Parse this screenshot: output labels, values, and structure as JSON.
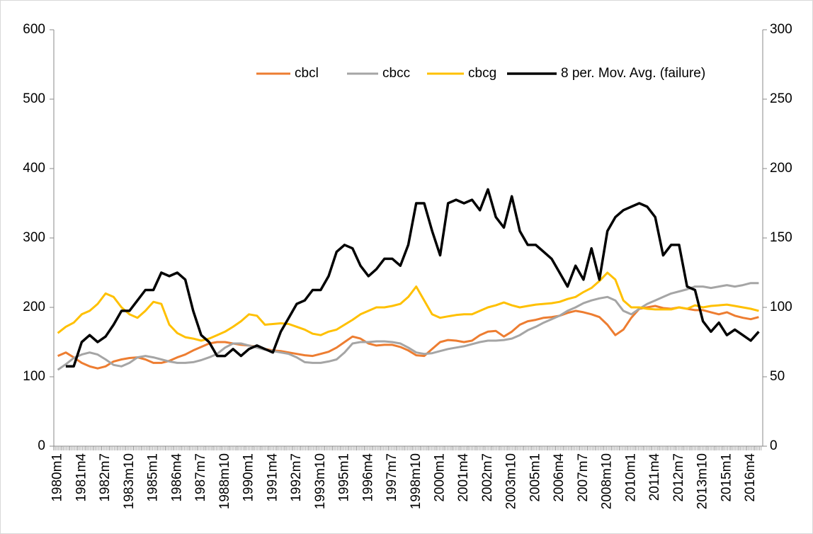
{
  "chart_data": {
    "type": "line",
    "categories": [
      "1980m1",
      null,
      null,
      "1981m4",
      null,
      null,
      "1982m7",
      null,
      null,
      "1983m10",
      null,
      null,
      "1985m1",
      null,
      null,
      "1986m4",
      null,
      null,
      "1987m7",
      null,
      null,
      "1988m10",
      null,
      null,
      "1990m1",
      null,
      null,
      "1991m4",
      null,
      null,
      "1992m7",
      null,
      null,
      "1993m10",
      null,
      null,
      "1995m1",
      null,
      null,
      "1996m4",
      null,
      null,
      "1997m7",
      null,
      null,
      "1998m10",
      null,
      null,
      "2000m1",
      null,
      null,
      "2001m4",
      null,
      null,
      "2002m7",
      null,
      null,
      "2003m10",
      null,
      null,
      "2005m1",
      null,
      null,
      "2006m4",
      null,
      null,
      "2007m7",
      null,
      null,
      "2008m10",
      null,
      null,
      "2010m1",
      null,
      null,
      "2011m4",
      null,
      null,
      "2012m7",
      null,
      null,
      "2013m10",
      null,
      null,
      "2015m1",
      null,
      null,
      "2016m4",
      null
    ],
    "series": [
      {
        "name": "cbcl",
        "color": "#ed7d31",
        "values": [
          130,
          135,
          128,
          120,
          115,
          112,
          115,
          122,
          125,
          127,
          128,
          125,
          120,
          120,
          123,
          128,
          132,
          138,
          143,
          148,
          150,
          150,
          148,
          146,
          145,
          143,
          140,
          138,
          137,
          135,
          133,
          131,
          130,
          133,
          136,
          142,
          150,
          158,
          155,
          148,
          145,
          146,
          146,
          143,
          138,
          131,
          130,
          140,
          150,
          153,
          152,
          150,
          152,
          160,
          165,
          166,
          158,
          165,
          175,
          180,
          182,
          185,
          186,
          188,
          192,
          195,
          193,
          190,
          186,
          175,
          160,
          168,
          185,
          198,
          200,
          202,
          199,
          198,
          200,
          198,
          196,
          196,
          193,
          190,
          193,
          188,
          185,
          183,
          186
        ]
      },
      {
        "name": "cbcc",
        "color": "#a5a5a5",
        "values": [
          110,
          118,
          127,
          132,
          135,
          132,
          125,
          117,
          115,
          120,
          128,
          130,
          128,
          125,
          122,
          120,
          120,
          121,
          124,
          128,
          133,
          142,
          148,
          148,
          145,
          142,
          139,
          137,
          135,
          133,
          128,
          121,
          120,
          120,
          122,
          125,
          135,
          148,
          150,
          150,
          151,
          151,
          150,
          148,
          142,
          135,
          133,
          134,
          137,
          140,
          142,
          144,
          147,
          150,
          152,
          152,
          153,
          155,
          160,
          167,
          172,
          178,
          183,
          188,
          195,
          200,
          206,
          210,
          213,
          215,
          210,
          195,
          190,
          198,
          205,
          210,
          215,
          220,
          223,
          226,
          230,
          230,
          228,
          230,
          232,
          230,
          232,
          235,
          235
        ]
      },
      {
        "name": "cbcg",
        "color": "#ffc000",
        "values": [
          163,
          172,
          178,
          190,
          195,
          205,
          220,
          215,
          200,
          190,
          185,
          195,
          208,
          205,
          175,
          163,
          157,
          155,
          152,
          155,
          160,
          165,
          172,
          180,
          190,
          188,
          175,
          176,
          177,
          176,
          172,
          168,
          162,
          160,
          165,
          168,
          175,
          182,
          190,
          195,
          200,
          200,
          202,
          205,
          215,
          230,
          210,
          190,
          185,
          187,
          189,
          190,
          190,
          195,
          200,
          203,
          207,
          203,
          200,
          202,
          204,
          205,
          206,
          208,
          212,
          215,
          222,
          228,
          238,
          250,
          240,
          210,
          200,
          200,
          198,
          197,
          197,
          197,
          200,
          198,
          203,
          200,
          202,
          203,
          204,
          202,
          200,
          198,
          195
        ]
      },
      {
        "name": "8 per. Mov. Avg. (failure)",
        "color": "#000000",
        "axis": "y2",
        "values": [
          null,
          57.5,
          57.5,
          75,
          80,
          75,
          79,
          87.5,
          97.5,
          97.5,
          105,
          112.5,
          112.5,
          125,
          122.5,
          125,
          120,
          97.5,
          80,
          75,
          65,
          65,
          70,
          65,
          70,
          72.5,
          70,
          67.5,
          82.5,
          92.5,
          102.5,
          105,
          112.5,
          112.5,
          122.5,
          140,
          145,
          142.5,
          130,
          122.5,
          127.5,
          135,
          135,
          130,
          145,
          175,
          175,
          155,
          137.5,
          175,
          177.5,
          175,
          177.5,
          170,
          185,
          165,
          157.5,
          180,
          155,
          145,
          145,
          140,
          135,
          125,
          115,
          130,
          120,
          142.5,
          120,
          155,
          165,
          170,
          172.5,
          175,
          172.5,
          165,
          137.5,
          145,
          145,
          115,
          112.5,
          90,
          82.5,
          89,
          80,
          84,
          80,
          76,
          82.5
        ]
      }
    ],
    "ylim": [
      0,
      600
    ],
    "yticks": [
      0,
      100,
      200,
      300,
      400,
      500,
      600
    ],
    "y2lim": [
      0,
      300
    ],
    "y2ticks": [
      0,
      50,
      100,
      150,
      200,
      250,
      300
    ],
    "legend": "top-right",
    "grid": false
  }
}
